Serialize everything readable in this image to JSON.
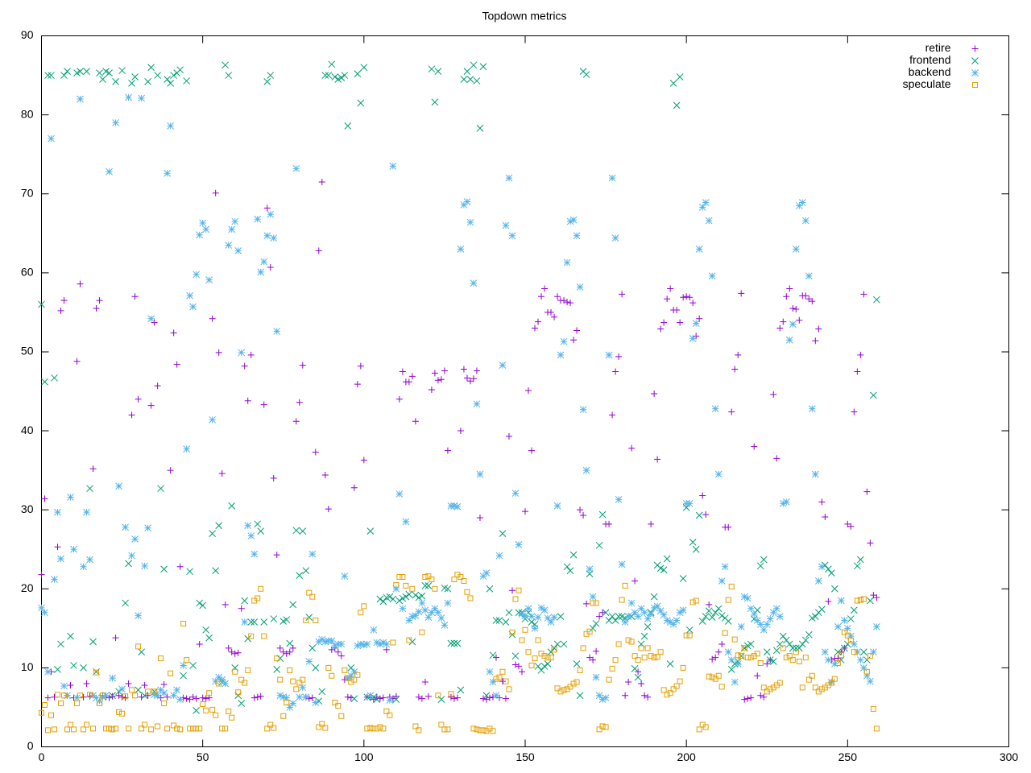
{
  "chart_data": {
    "type": "scatter",
    "title": "Topdown metrics",
    "xlim": [
      0,
      300
    ],
    "xticks": [
      0,
      50,
      100,
      150,
      200,
      250,
      300
    ],
    "ylim": [
      0,
      90
    ],
    "yticks": [
      0,
      10,
      20,
      30,
      40,
      50,
      60,
      70,
      80,
      90
    ],
    "grid": false,
    "legend": "top-right",
    "x": [
      0,
      1,
      2,
      3,
      4,
      5,
      6,
      7,
      8,
      9,
      10,
      11,
      12,
      13,
      14,
      15,
      16,
      17,
      18,
      19,
      20,
      21,
      22,
      23,
      24,
      25,
      26,
      27,
      28,
      29,
      30,
      31,
      32,
      33,
      34,
      35,
      36,
      37,
      38,
      39,
      40,
      41,
      42,
      43,
      44,
      45,
      46,
      47,
      48,
      49,
      50,
      51,
      52,
      53,
      54,
      55,
      56,
      57,
      58,
      59,
      60,
      61,
      62,
      63,
      64,
      65,
      66,
      67,
      68,
      69,
      70,
      71,
      72,
      73,
      74,
      75,
      76,
      77,
      78,
      79,
      80,
      81,
      82,
      83,
      84,
      85,
      86,
      87,
      88,
      89,
      90,
      91,
      92,
      93,
      94,
      95,
      96,
      97,
      98,
      99,
      100,
      101,
      102,
      103,
      104,
      105,
      106,
      107,
      108,
      109,
      110,
      111,
      112,
      113,
      114,
      115,
      116,
      117,
      118,
      119,
      120,
      121,
      122,
      123,
      124,
      125,
      126,
      127,
      128,
      129,
      130,
      131,
      132,
      133,
      134,
      135,
      136,
      137,
      138,
      139,
      140,
      141,
      142,
      143,
      144,
      145,
      146,
      147,
      148,
      149,
      150,
      151,
      152,
      153,
      154,
      155,
      156,
      157,
      158,
      159,
      160,
      161,
      162,
      163,
      164,
      165,
      166,
      167,
      168,
      169,
      170,
      171,
      172,
      173,
      174,
      175,
      176,
      177,
      178,
      179,
      180,
      181,
      182,
      183,
      184,
      185,
      186,
      187,
      188,
      189,
      190,
      191,
      192,
      193,
      194,
      195,
      196,
      197,
      198,
      199,
      200,
      201,
      202,
      203,
      204,
      205,
      206,
      207,
      208,
      209,
      210,
      211,
      212,
      213,
      214,
      215,
      216,
      217,
      218,
      219,
      220,
      221,
      222,
      223,
      224,
      225,
      226,
      227,
      228,
      229,
      230,
      231,
      232,
      233,
      234,
      235,
      236,
      237,
      238,
      239,
      240,
      241,
      242,
      243,
      244,
      245,
      246,
      247,
      248,
      249,
      250,
      251,
      252,
      253,
      254,
      255,
      256,
      257,
      258,
      259
    ],
    "series": [
      {
        "name": "retire",
        "color": "#9400d3",
        "marker": "plus",
        "values": [
          21.8,
          31.4,
          6.2,
          9.5,
          6.3,
          25.3,
          55.2,
          56.5,
          6.5,
          7.8,
          6.2,
          48.8,
          58.6,
          6.3,
          8.0,
          6.4,
          35.2,
          55.5,
          56.5,
          6.5,
          6.3,
          6.2,
          6.4,
          13.8,
          6.5,
          6.3,
          6.2,
          8.0,
          42.0,
          57.0,
          44.0,
          6.3,
          7.8,
          6.5,
          43.2,
          53.7,
          45.7,
          6.2,
          7.9,
          6.3,
          35.0,
          52.4,
          48.4,
          22.8,
          6.2,
          6.1,
          6.0,
          6.3,
          6.1,
          13.0,
          6.2,
          6.1,
          6.2,
          54.2,
          70.1,
          49.9,
          34.6,
          18.0,
          12.5,
          12.0,
          11.8,
          11.9,
          17.5,
          48.2,
          43.8,
          49.6,
          6.2,
          6.3,
          6.4,
          43.3,
          68.2,
          60.7,
          34.0,
          24.3,
          12.5,
          12.0,
          11.8,
          12.0,
          12.5,
          41.2,
          43.6,
          48.3,
          6.3,
          6.1,
          6.2,
          37.3,
          62.8,
          71.5,
          34.4,
          30.1,
          12.3,
          12.5,
          12.0,
          11.5,
          8.5,
          6.3,
          6.2,
          32.8,
          45.9,
          48.2,
          36.3,
          6.3,
          6.2,
          6.0,
          6.3,
          6.1,
          6.2,
          12.3,
          6.3,
          6.1,
          6.4,
          44.0,
          47.5,
          46.2,
          46.2,
          46.9,
          41.2,
          6.3,
          6.1,
          8.2,
          6.4,
          45.2,
          47.3,
          46.4,
          46.5,
          47.6,
          37.5,
          6.3,
          6.1,
          6.2,
          40.0,
          47.8,
          46.7,
          46.3,
          46.6,
          47.6,
          29.0,
          6.1,
          6.0,
          6.2,
          6.3,
          11.3,
          6.2,
          8.3,
          6.1,
          39.3,
          19.8,
          10.4,
          10.2,
          9.5,
          29.8,
          45.1,
          37.5,
          53.0,
          53.8,
          57.0,
          58.0,
          55.0,
          55.0,
          54.4,
          57.0,
          56.5,
          56.5,
          56.3,
          56.2,
          51.5,
          52.7,
          30.0,
          29.3,
          18.1,
          11.3,
          11.0,
          12.1,
          16.5,
          17.0,
          28.2,
          28.2,
          42.0,
          47.5,
          49.4,
          57.3,
          6.5,
          8.2,
          37.8,
          21.0,
          9.5,
          8.0,
          6.5,
          6.3,
          28.2,
          44.7,
          36.4,
          52.9,
          53.7,
          56.7,
          58.0,
          55.3,
          55.3,
          53.7,
          56.9,
          57.0,
          56.9,
          56.2,
          52.0,
          54.2,
          31.8,
          29.4,
          18.0,
          11.1,
          11.3,
          12.0,
          13.0,
          27.8,
          27.8,
          42.4,
          47.8,
          49.6,
          57.4,
          6.0,
          6.1,
          6.2,
          38.0,
          9.0,
          6.5,
          6.3,
          10.5,
          11.0,
          44.6,
          36.5,
          53.0,
          53.8,
          57.0,
          58.0,
          55.5,
          55.4,
          54.0,
          57.1,
          57.1,
          56.7,
          56.4,
          51.4,
          52.9,
          31.0,
          29.1,
          18.4,
          11.0,
          11.2,
          11.2,
          12.0,
          12.5,
          28.2,
          27.9,
          42.4,
          47.5,
          49.6,
          57.3,
          32.3,
          25.8,
          19.2,
          18.9
        ]
      },
      {
        "name": "frontend",
        "color": "#009e73",
        "marker": "cross",
        "values": [
          56,
          46.2,
          85,
          85,
          46.7,
          9.8,
          13,
          85,
          85.5,
          14,
          10.3,
          85.3,
          85.5,
          10,
          85.5,
          32.7,
          13.3,
          9.5,
          85.3,
          84.5,
          85.5,
          85.3,
          6.5,
          84.2,
          7.0,
          85.6,
          18.2,
          23.2,
          84,
          84.8,
          7.2,
          12,
          6.5,
          84.2,
          86,
          7.0,
          85,
          32.7,
          22.5,
          84.5,
          84,
          85,
          85.3,
          85.7,
          9.0,
          84.3,
          22.2,
          10.3,
          4.6,
          18.2,
          17.9,
          14.8,
          13.8,
          27,
          22.3,
          28,
          8.2,
          86.3,
          85,
          30.5,
          10,
          6.5,
          5.5,
          18.5,
          13.7,
          15.8,
          15.8,
          28.2,
          27.3,
          15.8,
          84.2,
          85,
          16.2,
          9.8,
          11.2,
          15.9,
          16.1,
          13.1,
          18,
          27.4,
          21.7,
          27.3,
          22.3,
          16.4,
          12.5,
          10,
          5.8,
          7.0,
          85,
          85,
          86.4,
          84.8,
          84.5,
          84.7,
          85,
          78.6,
          10,
          6.1,
          85.2,
          81.5,
          86,
          6.3,
          27.3,
          6.3,
          6.0,
          18.7,
          18.4,
          18.9,
          19,
          18.7,
          6.0,
          18.5,
          18.8,
          19,
          19.3,
          13.3,
          19.2,
          18.9,
          19.1,
          20.4,
          20.4,
          85.8,
          81.6,
          85.5,
          6,
          20.1,
          20,
          13.1,
          13.1,
          13.1,
          7.2,
          84.5,
          85.5,
          84.5,
          86.3,
          84.3,
          78.3,
          86.1,
          6.5,
          20,
          11.6,
          16,
          16,
          27,
          15.8,
          17,
          14.2,
          11.5,
          17,
          17,
          16.2,
          17,
          15.8,
          15.5,
          10.2,
          9.7,
          10.2,
          10.5,
          12,
          12.5,
          13,
          16.5,
          13,
          22.8,
          22.3,
          24.3,
          10.5,
          6.5,
          85.5,
          85.1,
          21.9,
          15,
          15.6,
          25.5,
          29.4,
          17,
          16,
          16.5,
          16,
          16.5,
          16.5,
          16.3,
          16.5,
          16.5,
          9.9,
          8.8,
          13,
          14,
          15.2,
          17,
          19,
          23,
          22.6,
          22.4,
          23.8,
          10.5,
          84,
          81.2,
          84.8,
          21.3,
          30.3,
          14.8,
          25.9,
          25,
          29.3,
          15.9,
          16.5,
          17.2,
          16.4,
          17,
          17.5,
          16.6,
          16.3,
          15.9,
          9.8,
          10.5,
          10.8,
          11.5,
          12.5,
          12.8,
          13,
          16.2,
          17.3,
          22.9,
          23.7,
          12,
          11,
          10.8,
          12.2,
          13,
          14,
          13.5,
          13,
          12.5,
          12.5,
          12.5,
          13,
          13.5,
          14.2,
          16.3,
          16.5,
          17,
          17.4,
          23,
          22.5,
          22,
          20,
          12,
          11,
          12.5,
          13,
          16.2,
          17.3,
          22.9,
          23.7,
          12,
          11,
          18.5,
          44.5,
          56.6
        ]
      },
      {
        "name": "backend",
        "color": "#56b4e9",
        "marker": "star",
        "values": [
          17.6,
          17,
          9.5,
          77,
          21.2,
          29.7,
          23.8,
          7.7,
          6.5,
          31.6,
          25,
          6.2,
          82,
          22.8,
          29.7,
          23.7,
          6.5,
          6.2,
          5.8,
          6.3,
          6.5,
          72.8,
          8.7,
          79,
          33,
          7.3,
          27.8,
          82.2,
          24.2,
          26.3,
          16.6,
          82.1,
          22.9,
          27.7,
          54.2,
          6.6,
          6.5,
          7.2,
          6.8,
          72.6,
          78.6,
          6.5,
          7.2,
          6.0,
          10.3,
          37.7,
          57.1,
          55.7,
          59.8,
          64.8,
          66.3,
          65.5,
          59.1,
          41.4,
          8.3,
          8.8,
          8.5,
          8.0,
          63.5,
          65.5,
          66.5,
          62.8,
          49.9,
          15.8,
          28,
          26.7,
          24.4,
          66.8,
          60.1,
          61.4,
          64.7,
          67.4,
          64.4,
          52.6,
          6.5,
          6.3,
          6.2,
          5.0,
          5.5,
          73.2,
          6.3,
          7.5,
          6.3,
          10.8,
          24.4,
          5.6,
          13.3,
          13.6,
          13.3,
          13.4,
          13.4,
          12.8,
          13,
          13,
          21.6,
          8.7,
          9,
          9.5,
          12.8,
          13,
          12.9,
          13,
          6.5,
          14.8,
          13.2,
          13,
          13.2,
          13,
          5.9,
          73.5,
          20,
          32,
          17.5,
          28.5,
          16,
          16.5,
          16.6,
          17.1,
          18.2,
          17.3,
          16.4,
          17,
          17.5,
          17,
          16.3,
          15.4,
          18.2,
          30.5,
          30.5,
          30.4,
          63,
          68.6,
          69,
          66.4,
          58.7,
          43.4,
          34.5,
          21.6,
          22,
          9.5,
          8.2,
          6.5,
          24.2,
          48.3,
          66,
          72,
          64.7,
          32.1,
          25.6,
          16.8,
          16.6,
          17.5,
          16.5,
          15,
          16.4,
          17.6,
          17.3,
          16.3,
          15.8,
          16.4,
          30.5,
          49.6,
          51.3,
          61.3,
          66.5,
          66.7,
          64.7,
          58.2,
          42.7,
          35,
          22.5,
          19,
          8.8,
          6.5,
          6.0,
          6.2,
          49.6,
          72,
          64.4,
          31.3,
          23.1,
          15.8,
          16.5,
          18.2,
          17,
          16.5,
          17.5,
          17,
          16.2,
          16.8,
          17.6,
          17.8,
          17.2,
          16.7,
          16,
          15.8,
          15.5,
          16,
          17,
          17.3,
          30.8,
          30.8,
          51.7,
          53.6,
          63,
          68.3,
          68.9,
          66.6,
          59.6,
          42.8,
          34.5,
          21,
          22.8,
          12,
          11,
          8.2,
          10.5,
          15.2,
          19,
          18.8,
          17.5,
          16.8,
          16,
          15.5,
          14.8,
          15.5,
          16.2,
          17,
          17.5,
          16.5,
          30.8,
          31,
          51.5,
          53.5,
          63,
          68.5,
          68.9,
          66.6,
          59.6,
          42.8,
          34.5,
          21,
          22.8,
          12,
          11,
          8.2,
          10.5,
          15.2,
          18.5,
          16,
          15,
          14,
          13,
          12,
          11,
          10,
          9,
          8.3,
          12,
          15.2
        ]
      },
      {
        "name": "speculate",
        "color": "#e69f00",
        "marker": "square",
        "values": [
          4.3,
          5.3,
          2.1,
          4.0,
          2.2,
          6.6,
          5.5,
          6.5,
          2.2,
          2.8,
          2.2,
          5.5,
          6.5,
          2.2,
          2.8,
          6.6,
          2.3,
          9.4,
          5.5,
          6.5,
          2.3,
          2.3,
          2.2,
          2.3,
          4.4,
          4.2,
          6.4,
          2.3,
          7.2,
          6.5,
          12.7,
          2.3,
          2.8,
          7.0,
          2.2,
          7.0,
          2.6,
          11.2,
          5.5,
          2.3,
          9.3,
          2.7,
          2.3,
          2.2,
          15.6,
          11,
          2.3,
          2.3,
          2.3,
          2.3,
          5.4,
          4.6,
          6.8,
          4.7,
          4.0,
          8.0,
          2.3,
          2.3,
          4.5,
          3.7,
          9.5,
          6.9,
          8.5,
          8.1,
          9.7,
          14,
          18.5,
          18.8,
          20,
          14,
          2.3,
          2.8,
          2.4,
          11.2,
          8.5,
          3.9,
          5.6,
          9.7,
          8.3,
          7.3,
          8.1,
          8.5,
          16,
          19.5,
          19,
          16,
          2.5,
          2.9,
          2.4,
          10,
          9.0,
          5.6,
          5.2,
          3.9,
          9.7,
          8.7,
          8.2,
          8.5,
          9.1,
          17,
          17.8,
          2.3,
          2.4,
          2.3,
          2.3,
          2.5,
          2.3,
          4.5,
          4.0,
          13.2,
          20.5,
          21.5,
          21.5,
          20.4,
          13.5,
          20,
          2.6,
          2.1,
          14.5,
          21.5,
          21.6,
          21.2,
          20,
          6.5,
          2.8,
          2.2,
          2.2,
          6.7,
          21.2,
          21.8,
          21.5,
          21,
          19.6,
          18.8,
          2.3,
          2.2,
          2.1,
          2.1,
          2.0,
          2.3,
          2.0,
          8.6,
          8.8,
          9.5,
          8.3,
          7.3,
          14.5,
          18.7,
          19.8,
          13.5,
          14.8,
          12,
          10.3,
          11.2,
          13.5,
          11.8,
          11.5,
          11.3,
          11.3,
          12.3,
          7.4,
          7.0,
          7.2,
          7.3,
          7.6,
          8.0,
          8.2,
          9.7,
          12.5,
          14.3,
          14.6,
          18.2,
          18.2,
          2.2,
          2.6,
          2.5,
          8.5,
          9.9,
          11,
          13,
          18.6,
          20.4,
          13.5,
          13.3,
          11.5,
          11,
          12.5,
          11.3,
          12.5,
          11.5,
          11.3,
          11.4,
          12,
          7.2,
          6.6,
          6.8,
          7.3,
          7.7,
          8.3,
          10,
          14.1,
          14.1,
          18.3,
          18.5,
          2.2,
          2.8,
          2.5,
          8.9,
          8.8,
          8.6,
          9.0,
          7.6,
          14.4,
          18.6,
          20.3,
          13.6,
          11.6,
          11.5,
          12.5,
          11.3,
          11.3,
          11.5,
          11.8,
          10.6,
          7.5,
          7.0,
          7.3,
          7.5,
          7.8,
          8.1,
          12.5,
          11.3,
          11.5,
          11.0,
          12.0,
          10.8,
          7.5,
          11.3,
          8.5,
          9.0,
          7.5,
          7.0,
          7.3,
          7.5,
          7.8,
          8.1,
          8.6,
          10.6,
          11.6,
          14.5,
          14.1,
          13.5,
          12,
          18.5,
          18.6,
          18.7,
          9.5,
          11.5,
          4.8,
          2.3
        ]
      }
    ]
  }
}
